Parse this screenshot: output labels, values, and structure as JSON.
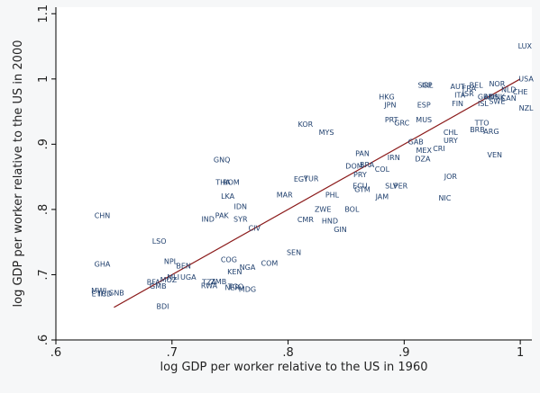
{
  "chart_data": {
    "type": "scatter",
    "title": "",
    "xlabel": "log GDP per worker relative to the US in 1960",
    "ylabel": "log GDP per worker relative to the US in 2000",
    "xlim": [
      0.6,
      1.01
    ],
    "ylim": [
      0.6,
      1.11
    ],
    "x_ticks": [
      {
        "value": 0.6,
        "label": ".6"
      },
      {
        "value": 0.7,
        "label": ".7"
      },
      {
        "value": 0.8,
        "label": ".8"
      },
      {
        "value": 0.9,
        "label": ".9"
      },
      {
        "value": 1.0,
        "label": "1"
      }
    ],
    "y_ticks": [
      {
        "value": 0.6,
        "label": ".6"
      },
      {
        "value": 0.7,
        "label": ".7"
      },
      {
        "value": 0.8,
        "label": ".8"
      },
      {
        "value": 0.9,
        "label": ".9"
      },
      {
        "value": 1.0,
        "label": "1"
      },
      {
        "value": 1.1,
        "label": "1.1"
      }
    ],
    "grid": false,
    "fit_line": {
      "x": [
        0.65,
        1.0
      ],
      "y": [
        0.65,
        1.0
      ],
      "color": "#8b1a1a"
    },
    "colors": {
      "points": "#1f3f6d",
      "plot_bg": "#ffffff",
      "outer_bg": "#f6f7f8"
    },
    "points": [
      {
        "label": "LUX",
        "x": 1.004,
        "y": 1.05
      },
      {
        "label": "USA",
        "x": 1.005,
        "y": 1.0
      },
      {
        "label": "NZL",
        "x": 1.005,
        "y": 0.955
      },
      {
        "label": "CHE",
        "x": 1.0,
        "y": 0.98
      },
      {
        "label": "NLD",
        "x": 0.99,
        "y": 0.983
      },
      {
        "label": "NOR",
        "x": 0.98,
        "y": 0.992
      },
      {
        "label": "BEL",
        "x": 0.962,
        "y": 0.99
      },
      {
        "label": "CAN",
        "x": 0.99,
        "y": 0.97
      },
      {
        "label": "DNK",
        "x": 0.98,
        "y": 0.972
      },
      {
        "label": "SWE",
        "x": 0.98,
        "y": 0.965
      },
      {
        "label": "GBR",
        "x": 0.97,
        "y": 0.972
      },
      {
        "label": "AUS",
        "x": 0.975,
        "y": 0.972
      },
      {
        "label": "AUT",
        "x": 0.946,
        "y": 0.988
      },
      {
        "label": "FRA",
        "x": 0.956,
        "y": 0.985
      },
      {
        "label": "FIN",
        "x": 0.946,
        "y": 0.962
      },
      {
        "label": "ISL",
        "x": 0.968,
        "y": 0.962
      },
      {
        "label": "ITA",
        "x": 0.948,
        "y": 0.975
      },
      {
        "label": "ISR",
        "x": 0.955,
        "y": 0.977
      },
      {
        "label": "SGP",
        "x": 0.918,
        "y": 0.99
      },
      {
        "label": "IRL",
        "x": 0.92,
        "y": 0.99
      },
      {
        "label": "HKG",
        "x": 0.885,
        "y": 0.972
      },
      {
        "label": "JPN",
        "x": 0.888,
        "y": 0.96
      },
      {
        "label": "ESP",
        "x": 0.917,
        "y": 0.96
      },
      {
        "label": "PRT",
        "x": 0.889,
        "y": 0.937
      },
      {
        "label": "GRC",
        "x": 0.898,
        "y": 0.932
      },
      {
        "label": "MUS",
        "x": 0.917,
        "y": 0.937
      },
      {
        "label": "TTO",
        "x": 0.967,
        "y": 0.932
      },
      {
        "label": "BRB",
        "x": 0.963,
        "y": 0.922
      },
      {
        "label": "ARG",
        "x": 0.975,
        "y": 0.919
      },
      {
        "label": "CHL",
        "x": 0.94,
        "y": 0.918
      },
      {
        "label": "URY",
        "x": 0.94,
        "y": 0.905
      },
      {
        "label": "GAB",
        "x": 0.91,
        "y": 0.903
      },
      {
        "label": "MEX",
        "x": 0.917,
        "y": 0.89
      },
      {
        "label": "CRI",
        "x": 0.93,
        "y": 0.893
      },
      {
        "label": "DZA",
        "x": 0.916,
        "y": 0.877
      },
      {
        "label": "VEN",
        "x": 0.978,
        "y": 0.883
      },
      {
        "label": "KOR",
        "x": 0.815,
        "y": 0.93
      },
      {
        "label": "MYS",
        "x": 0.833,
        "y": 0.918
      },
      {
        "label": "PAN",
        "x": 0.864,
        "y": 0.885
      },
      {
        "label": "IRN",
        "x": 0.891,
        "y": 0.879
      },
      {
        "label": "BRA",
        "x": 0.868,
        "y": 0.868
      },
      {
        "label": "DOM",
        "x": 0.857,
        "y": 0.866
      },
      {
        "label": "COL",
        "x": 0.881,
        "y": 0.861
      },
      {
        "label": "PRY",
        "x": 0.862,
        "y": 0.853
      },
      {
        "label": "JOR",
        "x": 0.94,
        "y": 0.85
      },
      {
        "label": "ECU",
        "x": 0.862,
        "y": 0.836
      },
      {
        "label": "GTM",
        "x": 0.864,
        "y": 0.83
      },
      {
        "label": "SLV",
        "x": 0.889,
        "y": 0.836
      },
      {
        "label": "PER",
        "x": 0.897,
        "y": 0.836
      },
      {
        "label": "JAM",
        "x": 0.881,
        "y": 0.819
      },
      {
        "label": "NIC",
        "x": 0.935,
        "y": 0.817
      },
      {
        "label": "GNQ",
        "x": 0.743,
        "y": 0.876
      },
      {
        "label": "EGY",
        "x": 0.811,
        "y": 0.846
      },
      {
        "label": "TUR",
        "x": 0.82,
        "y": 0.847
      },
      {
        "label": "PHL",
        "x": 0.838,
        "y": 0.822
      },
      {
        "label": "ZWE",
        "x": 0.83,
        "y": 0.8
      },
      {
        "label": "BOL",
        "x": 0.855,
        "y": 0.8
      },
      {
        "label": "CMR",
        "x": 0.815,
        "y": 0.784
      },
      {
        "label": "HND",
        "x": 0.836,
        "y": 0.782
      },
      {
        "label": "GIN",
        "x": 0.845,
        "y": 0.769
      },
      {
        "label": "MAR",
        "x": 0.797,
        "y": 0.822
      },
      {
        "label": "THA",
        "x": 0.744,
        "y": 0.841
      },
      {
        "label": "ROM",
        "x": 0.751,
        "y": 0.841
      },
      {
        "label": "LKA",
        "x": 0.748,
        "y": 0.82
      },
      {
        "label": "IDN",
        "x": 0.759,
        "y": 0.804
      },
      {
        "label": "PAK",
        "x": 0.743,
        "y": 0.79
      },
      {
        "label": "IND",
        "x": 0.731,
        "y": 0.785
      },
      {
        "label": "SYR",
        "x": 0.759,
        "y": 0.785
      },
      {
        "label": "CIV",
        "x": 0.771,
        "y": 0.771
      },
      {
        "label": "CHN",
        "x": 0.64,
        "y": 0.79
      },
      {
        "label": "LSO",
        "x": 0.689,
        "y": 0.751
      },
      {
        "label": "SEN",
        "x": 0.805,
        "y": 0.734
      },
      {
        "label": "GHA",
        "x": 0.64,
        "y": 0.716
      },
      {
        "label": "NPL",
        "x": 0.699,
        "y": 0.72
      },
      {
        "label": "BEN",
        "x": 0.71,
        "y": 0.713
      },
      {
        "label": "COG",
        "x": 0.749,
        "y": 0.723
      },
      {
        "label": "COM",
        "x": 0.784,
        "y": 0.717
      },
      {
        "label": "NGA",
        "x": 0.765,
        "y": 0.711
      },
      {
        "label": "KEN",
        "x": 0.754,
        "y": 0.704
      },
      {
        "label": "MLI",
        "x": 0.701,
        "y": 0.696
      },
      {
        "label": "UGA",
        "x": 0.714,
        "y": 0.696
      },
      {
        "label": "MOZ",
        "x": 0.697,
        "y": 0.692
      },
      {
        "label": "BFA",
        "x": 0.684,
        "y": 0.688
      },
      {
        "label": "GMB",
        "x": 0.688,
        "y": 0.682
      },
      {
        "label": "TZA",
        "x": 0.732,
        "y": 0.688
      },
      {
        "label": "ZMB",
        "x": 0.74,
        "y": 0.689
      },
      {
        "label": "RWA",
        "x": 0.732,
        "y": 0.683
      },
      {
        "label": "NER",
        "x": 0.752,
        "y": 0.68
      },
      {
        "label": "MDG",
        "x": 0.765,
        "y": 0.677
      },
      {
        "label": "TGO",
        "x": 0.755,
        "y": 0.681
      },
      {
        "label": "MWI",
        "x": 0.637,
        "y": 0.675
      },
      {
        "label": "ETH",
        "x": 0.637,
        "y": 0.67
      },
      {
        "label": "TCD",
        "x": 0.642,
        "y": 0.67
      },
      {
        "label": "GNB",
        "x": 0.652,
        "y": 0.672
      },
      {
        "label": "BDI",
        "x": 0.692,
        "y": 0.651
      }
    ]
  }
}
